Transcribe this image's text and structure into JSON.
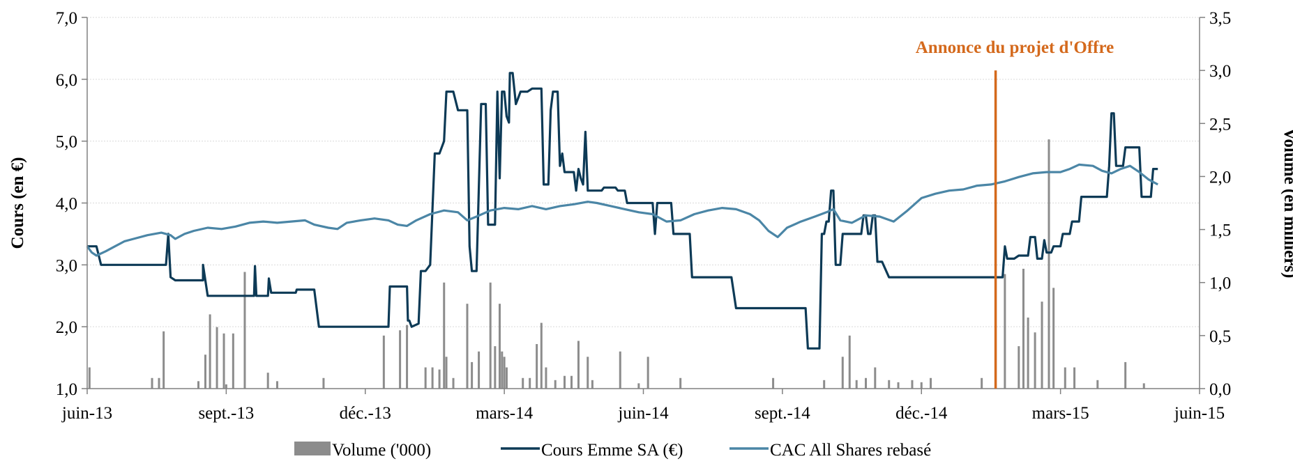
{
  "chart_data": {
    "type": "line",
    "annotation": "Annonce du projet d'Offre",
    "ylabel": "Cours (en €)",
    "y2label": "Volume (en milliers)",
    "ylim": [
      1.0,
      7.0
    ],
    "y2lim": [
      0.0,
      3.5
    ],
    "yticks": [
      "1,0",
      "2,0",
      "3,0",
      "4,0",
      "5,0",
      "6,0",
      "7,0"
    ],
    "y2ticks": [
      "0,0",
      "0,5",
      "1,0",
      "1,5",
      "2,0",
      "2,5",
      "3,0",
      "3,5"
    ],
    "xticks": [
      "juin-13",
      "sept.-13",
      "déc.-13",
      "mars-14",
      "juin-14",
      "sept.-14",
      "déc.-14",
      "mars-15",
      "juin-15"
    ],
    "annotation_month": 19.6,
    "colors": {
      "volume": "#8c8c8c",
      "price": "#0d3a56",
      "index": "#4b86a6",
      "annotation": "#d4691c"
    },
    "legend": [
      "Volume ('000)",
      "Cours Emme SA (€)",
      "CAC All Shares rebasé"
    ],
    "series": [
      {
        "name": "Cours Emme SA (€)",
        "axis": "left",
        "points": [
          [
            0,
            3.3
          ],
          [
            0.2,
            3.3
          ],
          [
            0.3,
            3.0
          ],
          [
            1.7,
            3.0
          ],
          [
            1.75,
            3.5
          ],
          [
            1.8,
            2.8
          ],
          [
            1.9,
            2.75
          ],
          [
            2.5,
            2.75
          ],
          [
            2.5,
            3.0
          ],
          [
            2.6,
            2.5
          ],
          [
            3.6,
            2.5
          ],
          [
            3.62,
            2.98
          ],
          [
            3.65,
            2.5
          ],
          [
            3.9,
            2.5
          ],
          [
            3.92,
            2.78
          ],
          [
            3.97,
            2.55
          ],
          [
            4.5,
            2.55
          ],
          [
            4.52,
            2.6
          ],
          [
            4.9,
            2.6
          ],
          [
            5.0,
            2.0
          ],
          [
            6.5,
            2.0
          ],
          [
            6.53,
            2.65
          ],
          [
            6.9,
            2.65
          ],
          [
            6.92,
            2.1
          ],
          [
            6.95,
            2.1
          ],
          [
            7.0,
            2.0
          ],
          [
            7.15,
            2.05
          ],
          [
            7.2,
            2.9
          ],
          [
            7.3,
            2.9
          ],
          [
            7.4,
            3.0
          ],
          [
            7.5,
            4.8
          ],
          [
            7.6,
            4.8
          ],
          [
            7.7,
            5.0
          ],
          [
            7.75,
            5.8
          ],
          [
            7.9,
            5.8
          ],
          [
            8.0,
            5.5
          ],
          [
            8.2,
            5.5
          ],
          [
            8.25,
            3.3
          ],
          [
            8.3,
            2.9
          ],
          [
            8.4,
            2.9
          ],
          [
            8.5,
            5.6
          ],
          [
            8.6,
            5.6
          ],
          [
            8.65,
            3.65
          ],
          [
            8.8,
            3.65
          ],
          [
            8.85,
            5.8
          ],
          [
            8.9,
            4.4
          ],
          [
            8.95,
            5.8
          ],
          [
            9.0,
            5.8
          ],
          [
            9.05,
            5.4
          ],
          [
            9.1,
            5.3
          ],
          [
            9.12,
            6.1
          ],
          [
            9.18,
            6.1
          ],
          [
            9.25,
            5.6
          ],
          [
            9.3,
            5.7
          ],
          [
            9.35,
            5.8
          ],
          [
            9.5,
            5.8
          ],
          [
            9.6,
            5.85
          ],
          [
            9.8,
            5.85
          ],
          [
            9.85,
            4.3
          ],
          [
            9.95,
            4.3
          ],
          [
            10.0,
            5.5
          ],
          [
            10.05,
            5.8
          ],
          [
            10.15,
            5.8
          ],
          [
            10.2,
            4.6
          ],
          [
            10.25,
            4.8
          ],
          [
            10.3,
            4.5
          ],
          [
            10.5,
            4.5
          ],
          [
            10.55,
            4.2
          ],
          [
            10.6,
            4.55
          ],
          [
            10.65,
            4.4
          ],
          [
            10.7,
            4.3
          ],
          [
            10.75,
            5.15
          ],
          [
            10.8,
            4.2
          ],
          [
            11.1,
            4.2
          ],
          [
            11.15,
            4.25
          ],
          [
            11.4,
            4.25
          ],
          [
            11.45,
            4.2
          ],
          [
            11.6,
            4.2
          ],
          [
            11.65,
            4.0
          ],
          [
            12.2,
            4.0
          ],
          [
            12.25,
            3.5
          ],
          [
            12.3,
            4.0
          ],
          [
            12.6,
            4.0
          ],
          [
            12.65,
            3.5
          ],
          [
            13.0,
            3.5
          ],
          [
            13.05,
            2.8
          ],
          [
            13.9,
            2.8
          ],
          [
            14.0,
            2.3
          ],
          [
            15.5,
            2.3
          ],
          [
            15.55,
            1.65
          ],
          [
            15.8,
            1.65
          ],
          [
            15.85,
            3.5
          ],
          [
            15.9,
            3.5
          ],
          [
            15.95,
            3.7
          ],
          [
            16.0,
            3.7
          ],
          [
            16.05,
            4.2
          ],
          [
            16.1,
            4.2
          ],
          [
            16.15,
            3.0
          ],
          [
            16.25,
            3.0
          ],
          [
            16.3,
            3.5
          ],
          [
            16.7,
            3.5
          ],
          [
            16.75,
            3.8
          ],
          [
            16.8,
            3.8
          ],
          [
            16.85,
            3.5
          ],
          [
            16.9,
            3.5
          ],
          [
            16.95,
            3.8
          ],
          [
            17.0,
            3.8
          ],
          [
            17.05,
            3.05
          ],
          [
            17.15,
            3.05
          ],
          [
            17.3,
            2.8
          ],
          [
            19.6,
            2.8
          ],
          [
            19.75,
            2.8
          ],
          [
            19.8,
            3.3
          ],
          [
            19.85,
            3.1
          ],
          [
            20.0,
            3.1
          ],
          [
            20.1,
            3.15
          ],
          [
            20.3,
            3.15
          ],
          [
            20.35,
            3.45
          ],
          [
            20.45,
            3.45
          ],
          [
            20.5,
            3.1
          ],
          [
            20.6,
            3.1
          ],
          [
            20.65,
            3.4
          ],
          [
            20.7,
            3.2
          ],
          [
            20.8,
            3.2
          ],
          [
            20.85,
            3.3
          ],
          [
            21.0,
            3.3
          ],
          [
            21.05,
            3.5
          ],
          [
            21.2,
            3.5
          ],
          [
            21.25,
            3.7
          ],
          [
            21.4,
            3.7
          ],
          [
            21.45,
            4.1
          ],
          [
            22.0,
            4.1
          ],
          [
            22.05,
            4.6
          ],
          [
            22.1,
            5.45
          ],
          [
            22.15,
            5.45
          ],
          [
            22.2,
            4.6
          ],
          [
            22.35,
            4.6
          ],
          [
            22.4,
            4.9
          ],
          [
            22.7,
            4.9
          ],
          [
            22.75,
            4.1
          ],
          [
            22.95,
            4.1
          ],
          [
            23.0,
            4.55
          ],
          [
            23.1,
            4.55
          ]
        ]
      },
      {
        "name": "CAC All Shares rebasé",
        "axis": "left",
        "points": [
          [
            0,
            3.3
          ],
          [
            0.1,
            3.2
          ],
          [
            0.2,
            3.15
          ],
          [
            0.4,
            3.22
          ],
          [
            0.6,
            3.3
          ],
          [
            0.8,
            3.38
          ],
          [
            1.0,
            3.42
          ],
          [
            1.3,
            3.48
          ],
          [
            1.6,
            3.52
          ],
          [
            1.8,
            3.48
          ],
          [
            1.9,
            3.42
          ],
          [
            2.1,
            3.5
          ],
          [
            2.3,
            3.55
          ],
          [
            2.6,
            3.6
          ],
          [
            2.9,
            3.58
          ],
          [
            3.2,
            3.62
          ],
          [
            3.5,
            3.68
          ],
          [
            3.8,
            3.7
          ],
          [
            4.1,
            3.68
          ],
          [
            4.4,
            3.7
          ],
          [
            4.7,
            3.72
          ],
          [
            4.9,
            3.65
          ],
          [
            5.2,
            3.6
          ],
          [
            5.4,
            3.58
          ],
          [
            5.6,
            3.68
          ],
          [
            5.9,
            3.72
          ],
          [
            6.2,
            3.75
          ],
          [
            6.5,
            3.72
          ],
          [
            6.7,
            3.65
          ],
          [
            6.9,
            3.63
          ],
          [
            7.1,
            3.72
          ],
          [
            7.4,
            3.82
          ],
          [
            7.7,
            3.88
          ],
          [
            8.0,
            3.85
          ],
          [
            8.2,
            3.72
          ],
          [
            8.4,
            3.78
          ],
          [
            8.7,
            3.88
          ],
          [
            9.0,
            3.92
          ],
          [
            9.3,
            3.9
          ],
          [
            9.6,
            3.95
          ],
          [
            9.9,
            3.9
          ],
          [
            10.2,
            3.95
          ],
          [
            10.5,
            3.98
          ],
          [
            10.8,
            4.02
          ],
          [
            11.0,
            4.0
          ],
          [
            11.3,
            3.95
          ],
          [
            11.6,
            3.9
          ],
          [
            11.9,
            3.85
          ],
          [
            12.2,
            3.82
          ],
          [
            12.5,
            3.7
          ],
          [
            12.8,
            3.72
          ],
          [
            13.1,
            3.82
          ],
          [
            13.4,
            3.88
          ],
          [
            13.7,
            3.92
          ],
          [
            14.0,
            3.9
          ],
          [
            14.3,
            3.82
          ],
          [
            14.5,
            3.72
          ],
          [
            14.7,
            3.55
          ],
          [
            14.9,
            3.45
          ],
          [
            15.1,
            3.6
          ],
          [
            15.4,
            3.7
          ],
          [
            15.7,
            3.78
          ],
          [
            15.95,
            3.85
          ],
          [
            16.1,
            3.9
          ],
          [
            16.25,
            3.72
          ],
          [
            16.5,
            3.68
          ],
          [
            16.8,
            3.8
          ],
          [
            17.1,
            3.78
          ],
          [
            17.4,
            3.7
          ],
          [
            17.7,
            3.88
          ],
          [
            18.0,
            4.08
          ],
          [
            18.3,
            4.15
          ],
          [
            18.6,
            4.2
          ],
          [
            18.9,
            4.22
          ],
          [
            19.2,
            4.28
          ],
          [
            19.5,
            4.3
          ],
          [
            19.8,
            4.35
          ],
          [
            20.1,
            4.42
          ],
          [
            20.4,
            4.48
          ],
          [
            20.7,
            4.5
          ],
          [
            21.0,
            4.5
          ],
          [
            21.2,
            4.55
          ],
          [
            21.4,
            4.62
          ],
          [
            21.7,
            4.6
          ],
          [
            21.9,
            4.52
          ],
          [
            22.1,
            4.48
          ],
          [
            22.3,
            4.55
          ],
          [
            22.5,
            4.6
          ],
          [
            22.7,
            4.5
          ],
          [
            22.9,
            4.38
          ],
          [
            23.1,
            4.3
          ]
        ]
      },
      {
        "name": "Volume ('000)",
        "type": "bar",
        "axis": "right",
        "points": [
          [
            0.05,
            0.2
          ],
          [
            1.4,
            0.1
          ],
          [
            1.55,
            0.1
          ],
          [
            1.65,
            0.54
          ],
          [
            2.4,
            0.07
          ],
          [
            2.55,
            0.32
          ],
          [
            2.65,
            0.7
          ],
          [
            2.8,
            0.58
          ],
          [
            2.95,
            0.52
          ],
          [
            3.0,
            0.04
          ],
          [
            3.15,
            0.52
          ],
          [
            3.4,
            1.1
          ],
          [
            3.9,
            0.15
          ],
          [
            4.1,
            0.07
          ],
          [
            5.1,
            0.1
          ],
          [
            6.4,
            0.5
          ],
          [
            6.75,
            0.55
          ],
          [
            6.9,
            0.6
          ],
          [
            7.3,
            0.2
          ],
          [
            7.45,
            0.2
          ],
          [
            7.6,
            0.18
          ],
          [
            7.7,
            1.0
          ],
          [
            7.75,
            0.3
          ],
          [
            7.9,
            0.1
          ],
          [
            8.2,
            0.8
          ],
          [
            8.3,
            0.25
          ],
          [
            8.45,
            0.35
          ],
          [
            8.7,
            1.0
          ],
          [
            8.8,
            0.4
          ],
          [
            8.9,
            0.8
          ],
          [
            8.95,
            0.35
          ],
          [
            9.0,
            0.3
          ],
          [
            9.05,
            0.2
          ],
          [
            9.4,
            0.1
          ],
          [
            9.55,
            0.1
          ],
          [
            9.7,
            0.42
          ],
          [
            9.8,
            0.62
          ],
          [
            9.9,
            0.2
          ],
          [
            10.1,
            0.08
          ],
          [
            10.3,
            0.12
          ],
          [
            10.45,
            0.12
          ],
          [
            10.6,
            0.45
          ],
          [
            10.8,
            0.3
          ],
          [
            10.9,
            0.08
          ],
          [
            11.5,
            0.35
          ],
          [
            11.9,
            0.05
          ],
          [
            12.1,
            0.3
          ],
          [
            12.8,
            0.1
          ],
          [
            14.8,
            0.1
          ],
          [
            15.9,
            0.08
          ],
          [
            16.3,
            0.3
          ],
          [
            16.45,
            0.5
          ],
          [
            16.6,
            0.08
          ],
          [
            16.8,
            0.1
          ],
          [
            17.0,
            0.2
          ],
          [
            17.3,
            0.08
          ],
          [
            17.5,
            0.06
          ],
          [
            17.8,
            0.08
          ],
          [
            18.0,
            0.06
          ],
          [
            18.2,
            0.1
          ],
          [
            19.3,
            0.1
          ],
          [
            19.6,
            0.05
          ],
          [
            19.8,
            1.08
          ],
          [
            20.1,
            0.4
          ],
          [
            20.2,
            1.13
          ],
          [
            20.3,
            0.67
          ],
          [
            20.45,
            0.53
          ],
          [
            20.6,
            0.82
          ],
          [
            20.75,
            2.35
          ],
          [
            20.85,
            0.95
          ],
          [
            21.1,
            0.2
          ],
          [
            21.3,
            0.2
          ],
          [
            21.8,
            0.08
          ],
          [
            22.4,
            0.25
          ],
          [
            22.8,
            0.05
          ]
        ]
      }
    ]
  }
}
